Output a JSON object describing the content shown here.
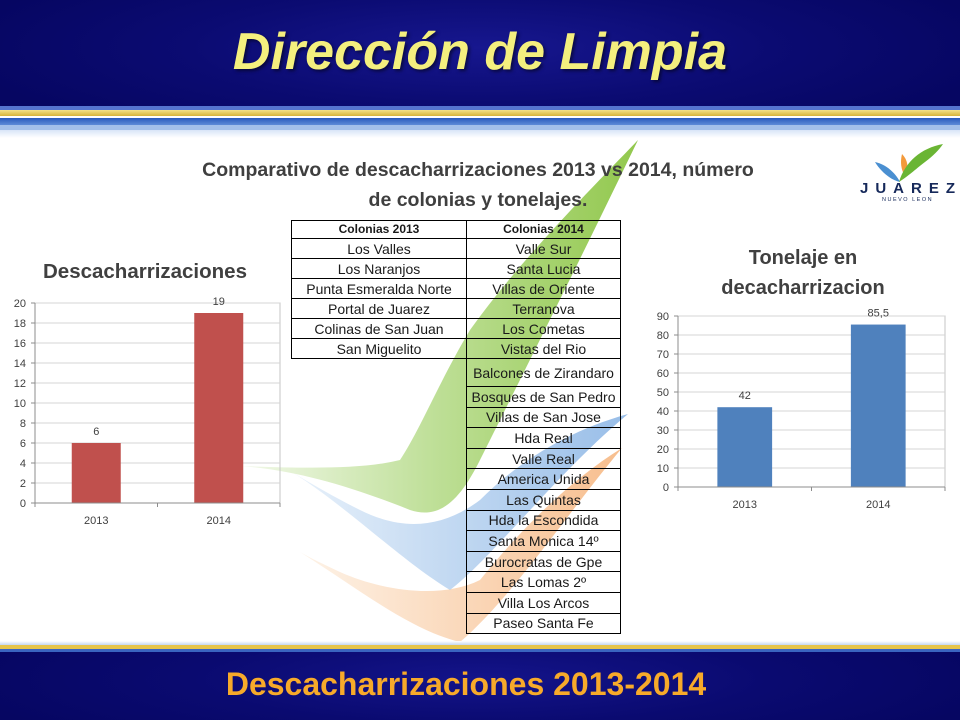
{
  "slide": {
    "title": "Dirección de Limpia",
    "subtitle_lines": [
      "Comparativo de descacharrizaciones 2013 vs 2014, número",
      "de colonias y tonelajes."
    ],
    "footer_title": "Descacharrizaciones 2013-2014",
    "colors": {
      "header_bg": "#0a0a70",
      "title": "#f4ef7e",
      "footer_text": "#f7aa2a",
      "heading_text": "#404040",
      "accent_gold": "#e6c44a",
      "accent_blue": "#3a64c0"
    }
  },
  "logo": {
    "wordmark": "JUAREZ",
    "subtext": "NUEVO LEON",
    "icon": "juarez-leaf-logo-icon"
  },
  "table": {
    "columns": [
      {
        "header": "Colonias 2013",
        "items": [
          "Los Valles",
          "Los Naranjos",
          "Punta Esmeralda Norte",
          "Portal de Juarez",
          "Colinas de San Juan",
          "San Miguelito"
        ]
      },
      {
        "header": "Colonias 2014",
        "items": [
          "Valle Sur",
          "Santa Lucia",
          "Villas de Oriente",
          "Terranova",
          "Los Cometas",
          "Vistas del Rio",
          "Balcones de Zirandaro",
          "Bosques de San Pedro",
          "Villas de San Jose",
          "Hda Real",
          "Valle Real",
          "America Unida",
          "Las Quintas",
          "Hda la Escondida",
          "Santa Monica 14º",
          "Burocratas de Gpe",
          "Las Lomas 2º",
          "Villa Los Arcos",
          "Paseo Santa Fe"
        ]
      }
    ]
  },
  "chart_data": [
    {
      "type": "bar",
      "title": "Descacharrizaciones",
      "categories": [
        "2013",
        "2014"
      ],
      "values": [
        6,
        19
      ],
      "data_labels": [
        "6",
        "19"
      ],
      "ylim": [
        0,
        20
      ],
      "yticks": [
        0,
        2,
        4,
        6,
        8,
        10,
        12,
        14,
        16,
        18,
        20
      ],
      "grid": true,
      "color": "#c0504d"
    },
    {
      "type": "bar",
      "title": "Tonelaje en decacharrizacion",
      "categories": [
        "2013",
        "2014"
      ],
      "values": [
        42,
        85.5
      ],
      "data_labels": [
        "42",
        "85,5"
      ],
      "ylim": [
        0,
        90
      ],
      "yticks": [
        0,
        10,
        20,
        30,
        40,
        50,
        60,
        70,
        80,
        90
      ],
      "grid": true,
      "color": "#4f81bd"
    }
  ]
}
